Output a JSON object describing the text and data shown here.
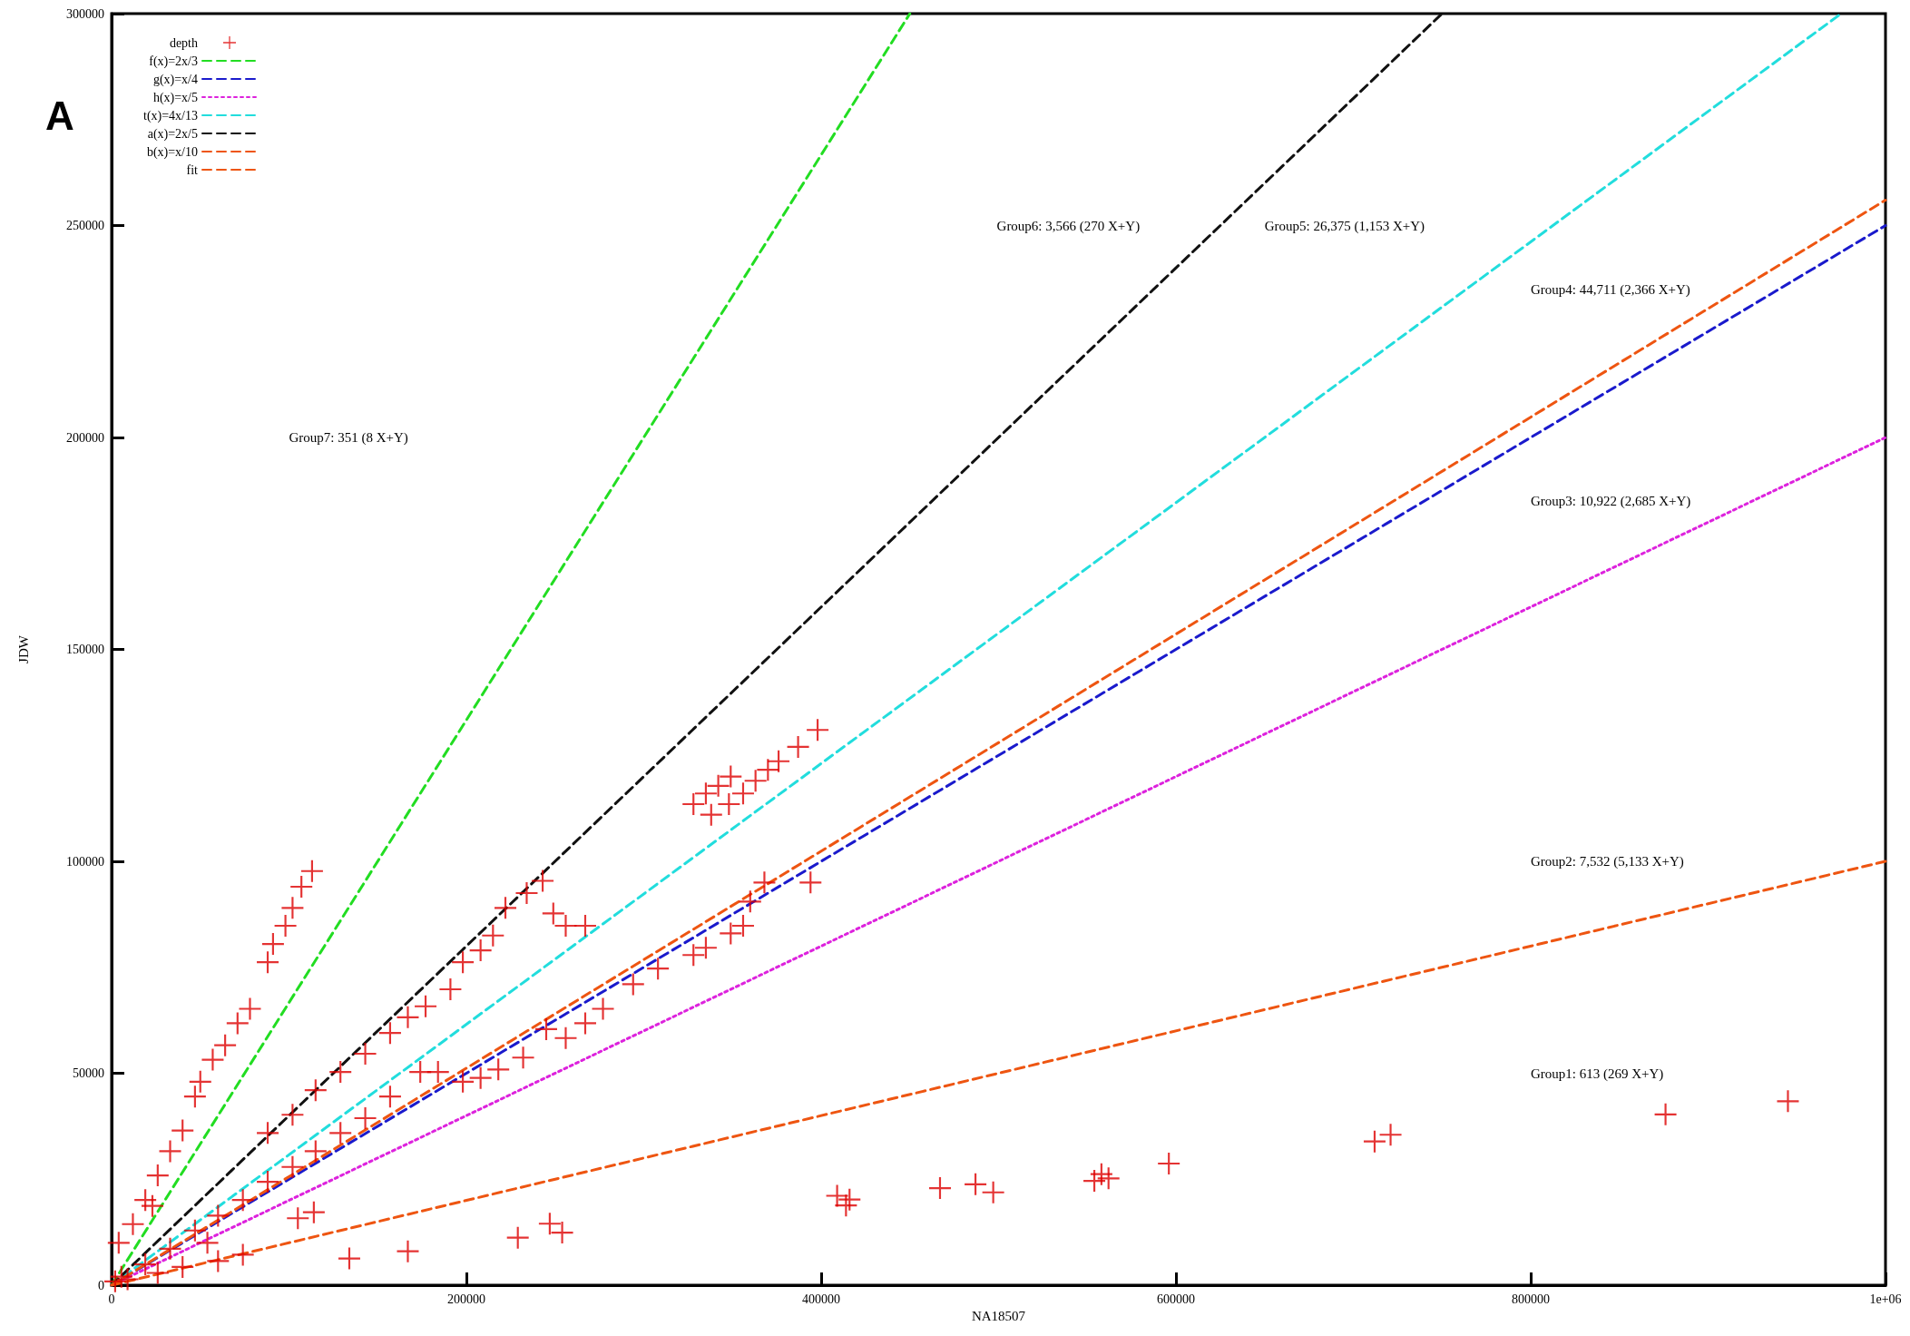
{
  "chart_data": {
    "type": "scatter",
    "xlabel": "NA18507",
    "ylabel": "JDW",
    "xlim": [
      0,
      1000000
    ],
    "ylim": [
      0,
      300000
    ],
    "xticks": [
      0,
      200000,
      400000,
      600000,
      800000,
      {
        "value": 1000000,
        "label": "1e+06"
      }
    ],
    "yticks": [
      0,
      50000,
      100000,
      150000,
      200000,
      250000,
      300000
    ],
    "grid": false,
    "legend": "top left",
    "annotations": [
      "A",
      "Group7: 351 (8 X+Y)",
      "Group6: 3,566 (270 X+Y)",
      "Group5: 26,375 (1,153 X+Y)",
      "Group4: 44,711 (2,366 X+Y)",
      "Group3: 10,922 (2,685 X+Y)",
      "Group2: 7,532 (5,133 X+Y)",
      "Group1: 613 (269 X+Y)"
    ],
    "series": [
      {
        "name": "depth",
        "marker": "cross",
        "color": "#dd0000",
        "x": [
          945000,
          876000,
          721000,
          712000,
          596000,
          562000,
          558000,
          554000,
          497000,
          487000,
          467000,
          416000,
          414000,
          409000,
          254000,
          247000,
          134000,
          167000,
          229000,
          398000,
          387000,
          394000,
          376000,
          370000,
          363000,
          349000,
          342000,
          335000,
          328000,
          338000,
          348000,
          356000,
          356000,
          349000,
          335000,
          328000,
          308000,
          294000,
          360000,
          368000,
          277000,
          267000,
          256000,
          245000,
          232000,
          218000,
          208000,
          198000,
          184000,
          174000,
          157000,
          243000,
          234000,
          222000,
          215000,
          208000,
          198000,
          249000,
          256000,
          267000,
          191000,
          177000,
          167000,
          157000,
          143000,
          129000,
          115000,
          102000,
          88000,
          113000,
          107000,
          102000,
          98000,
          91000,
          88000,
          78000,
          71000,
          64000,
          57000,
          50000,
          47000,
          40000,
          33000,
          26000,
          19000,
          143000,
          129000,
          115000,
          102000,
          88000,
          74000,
          60000,
          47000,
          33000,
          19000,
          5500,
          114000,
          105000,
          74000,
          60000,
          40000,
          26000,
          9000,
          2000,
          4000,
          12000,
          23000,
          54000
        ],
        "values": [
          43400,
          40300,
          35500,
          33900,
          28700,
          25200,
          26200,
          24600,
          21900,
          23800,
          22900,
          20200,
          18800,
          21100,
          12400,
          14500,
          6300,
          8000,
          11200,
          131000,
          127000,
          95000,
          123600,
          121600,
          119000,
          120000,
          117800,
          116000,
          113500,
          111000,
          113500,
          116000,
          84800,
          83000,
          79600,
          77900,
          74700,
          71000,
          90500,
          95000,
          65200,
          61800,
          58300,
          60400,
          53700,
          50900,
          48900,
          48000,
          50300,
          50300,
          44500,
          95400,
          92500,
          89000,
          82500,
          79000,
          76200,
          87700,
          84800,
          84800,
          69800,
          65800,
          63200,
          59500,
          54600,
          50300,
          46000,
          40200,
          35900,
          97700,
          94000,
          89000,
          84800,
          80500,
          76200,
          65200,
          61800,
          56600,
          53200,
          48000,
          44500,
          36500,
          31600,
          25900,
          20100,
          39400,
          35900,
          31600,
          27900,
          24400,
          20100,
          16400,
          12900,
          8600,
          4900,
          2000,
          17200,
          15800,
          7200,
          5700,
          4300,
          2900,
          1400,
          900,
          10000,
          14400,
          18700,
          10000
        ]
      },
      {
        "name": "f(x)=2x/3",
        "type": "line",
        "marker": "none",
        "line_style": "dashed",
        "color": "#22dd22",
        "x": [
          0,
          450000
        ],
        "values": [
          0,
          300000
        ]
      },
      {
        "name": "g(x)=x/4",
        "type": "line",
        "marker": "none",
        "line_style": "dashed",
        "color": "#1a1acc",
        "x": [
          0,
          1000000
        ],
        "values": [
          0,
          250000
        ]
      },
      {
        "name": "h(x)=x/5",
        "type": "line",
        "marker": "none",
        "line_style": "dotted",
        "color": "#dd22dd",
        "x": [
          0,
          1000000
        ],
        "values": [
          0,
          200000
        ]
      },
      {
        "name": "t(x)=4x/13",
        "type": "line",
        "marker": "none",
        "line_style": "dashed",
        "color": "#22dddd",
        "x": [
          0,
          975000
        ],
        "values": [
          0,
          300000
        ]
      },
      {
        "name": "a(x)=2x/5",
        "type": "line",
        "marker": "none",
        "line_style": "dashed",
        "color": "#111111",
        "x": [
          0,
          750000
        ],
        "values": [
          0,
          300000
        ]
      },
      {
        "name": "b(x)=x/10",
        "type": "line",
        "marker": "none",
        "line_style": "dashed",
        "color": "#ee5511",
        "x": [
          0,
          1000000
        ],
        "values": [
          0,
          100000
        ]
      },
      {
        "name": "fit",
        "type": "line",
        "marker": "none",
        "line_style": "dashed",
        "color": "#ee5511",
        "x": [
          0,
          1000000
        ],
        "values": [
          0,
          256000
        ]
      }
    ]
  }
}
